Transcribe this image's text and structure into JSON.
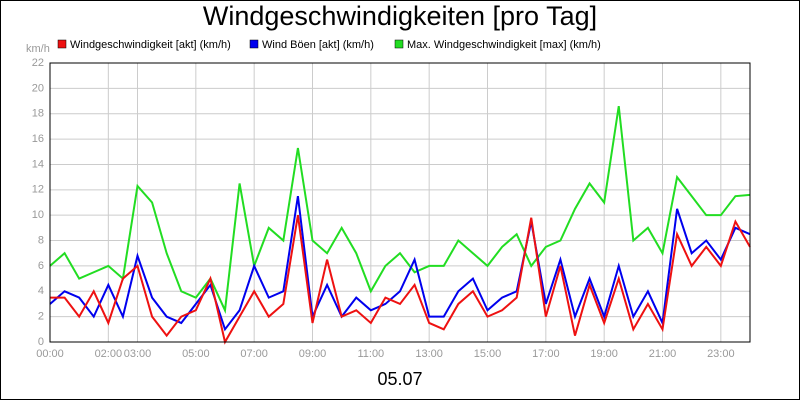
{
  "chart_data": {
    "type": "line",
    "title": "Windgeschwindigkeiten [pro Tag]",
    "y_label": "km/h",
    "x_label": "05.07",
    "x": [
      0,
      0.5,
      1,
      1.5,
      2,
      2.5,
      3,
      3.5,
      4,
      4.5,
      5,
      5.5,
      6,
      6.5,
      7,
      7.5,
      8,
      8.5,
      9,
      9.5,
      10,
      10.5,
      11,
      11.5,
      12,
      12.5,
      13,
      13.5,
      14,
      14.5,
      15,
      15.5,
      16,
      16.5,
      17,
      17.5,
      18,
      18.5,
      19,
      19.5,
      20,
      20.5,
      21,
      21.5,
      22,
      22.5,
      23,
      23.5,
      24
    ],
    "series": [
      {
        "name": "Windgeschwindigkeit [akt] (km/h)",
        "color": "#ee1111",
        "values": [
          3.5,
          3.5,
          2,
          4,
          1.5,
          5,
          6,
          2,
          0.5,
          2,
          2.5,
          5,
          0,
          2,
          4,
          2,
          3,
          10,
          1.5,
          6.5,
          2,
          2.5,
          1.5,
          3.5,
          3,
          4.5,
          1.5,
          1,
          3,
          4,
          2,
          2.5,
          3.5,
          9.8,
          2,
          6,
          0.5,
          4.5,
          1.5,
          5,
          1,
          3,
          1,
          8.5,
          6,
          7.5,
          6,
          9.5,
          7.5
        ]
      },
      {
        "name": "Wind Böen [akt] (km/h)",
        "color": "#0000ee",
        "values": [
          3,
          4,
          3.5,
          2,
          4.5,
          2,
          6.8,
          3.5,
          2,
          1.5,
          3,
          4.5,
          1,
          2.5,
          6,
          3.5,
          4,
          11.5,
          2,
          4.5,
          2,
          3.5,
          2.5,
          3,
          4,
          6.5,
          2,
          2,
          4,
          5,
          2.5,
          3.5,
          4,
          9.5,
          3,
          6.5,
          2,
          5,
          2,
          6,
          2,
          4,
          1.5,
          10.5,
          7,
          8,
          6.5,
          9,
          8.5
        ]
      },
      {
        "name": "Max. Windgeschwindigkeit [max] (km/h)",
        "color": "#22dd22",
        "values": [
          6,
          7,
          5,
          5.5,
          6,
          5,
          12.3,
          11,
          7,
          4,
          3.5,
          5,
          2.5,
          12.5,
          6,
          9,
          8,
          15.3,
          8,
          7,
          9,
          7,
          4,
          6,
          7,
          5.5,
          6,
          6,
          8,
          7,
          6,
          7.5,
          8.5,
          6,
          7.5,
          8,
          10.5,
          12.5,
          11,
          18.6,
          8,
          9,
          7,
          13,
          11.5,
          10,
          10,
          11.5,
          11.6
        ]
      }
    ],
    "xlim": [
      0,
      24
    ],
    "xticks": [
      {
        "value": 0,
        "label": "00:00"
      },
      {
        "value": 2,
        "label": "02:00"
      },
      {
        "value": 3,
        "label": "03:00"
      },
      {
        "value": 5,
        "label": "05:00"
      },
      {
        "value": 7,
        "label": "07:00"
      },
      {
        "value": 9,
        "label": "09:00"
      },
      {
        "value": 11,
        "label": "11:00"
      },
      {
        "value": 13,
        "label": "13:00"
      },
      {
        "value": 15,
        "label": "15:00"
      },
      {
        "value": 17,
        "label": "17:00"
      },
      {
        "value": 19,
        "label": "19:00"
      },
      {
        "value": 21,
        "label": "21:00"
      },
      {
        "value": 23,
        "label": "23:00"
      }
    ],
    "ylim": [
      0,
      22
    ],
    "yticks": [
      0,
      2,
      4,
      6,
      8,
      10,
      12,
      14,
      16,
      18,
      20,
      22
    ],
    "grid": true
  }
}
